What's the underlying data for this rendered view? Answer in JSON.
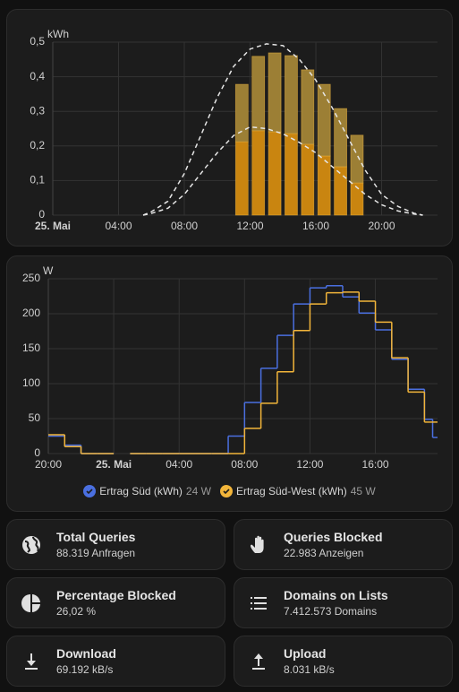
{
  "chart_data": [
    {
      "type": "bar",
      "y_unit": "kWh",
      "xlim": [
        0,
        23.4
      ],
      "ylim": [
        0,
        0.5
      ],
      "xticks": [
        {
          "value": 0,
          "label": "25. Mai"
        },
        {
          "value": 4,
          "label": "04:00"
        },
        {
          "value": 8,
          "label": "08:00"
        },
        {
          "value": 12,
          "label": "12:00"
        },
        {
          "value": 16,
          "label": "16:00"
        },
        {
          "value": 20,
          "label": "20:00"
        }
      ],
      "yticks": [
        0,
        {
          "value": 0.1,
          "label": "0,1"
        },
        {
          "value": 0.2,
          "label": "0,2"
        },
        {
          "value": 0.3,
          "label": "0,3"
        },
        {
          "value": 0.4,
          "label": "0,4"
        },
        {
          "value": 0.5,
          "label": "0,5"
        }
      ],
      "grid": true,
      "series": [
        {
          "type": "bar",
          "color": "#c98510",
          "x": [
            11.5,
            12.5,
            13.5,
            14.5,
            15.5,
            16.5,
            17.5,
            18.5
          ],
          "values": [
            0.212,
            0.244,
            0.241,
            0.236,
            0.205,
            0.171,
            0.14,
            0.093
          ]
        },
        {
          "type": "bar",
          "stacked": true,
          "color": "#9c7f35",
          "x": [
            11.5,
            12.5,
            13.5,
            14.5,
            15.5,
            16.5,
            17.5,
            18.5
          ],
          "values": [
            0.166,
            0.215,
            0.228,
            0.225,
            0.215,
            0.207,
            0.168,
            0.138
          ]
        },
        {
          "type": "line",
          "dashed": true,
          "color": "#e6e6e6",
          "x": [
            5.5,
            6,
            7,
            8,
            9,
            10,
            11,
            12,
            13,
            14,
            15,
            16,
            17,
            18,
            19,
            20,
            21,
            22,
            22.5
          ],
          "values": [
            0,
            0.01,
            0.04,
            0.12,
            0.23,
            0.34,
            0.43,
            0.48,
            0.495,
            0.49,
            0.45,
            0.39,
            0.31,
            0.22,
            0.13,
            0.06,
            0.025,
            0.005,
            0
          ]
        },
        {
          "type": "line",
          "dashed": true,
          "color": "#e6e6e6",
          "x": [
            5.5,
            6,
            7,
            8,
            9,
            10,
            11,
            12,
            13,
            14,
            15,
            16,
            17,
            18,
            19,
            20,
            21,
            22,
            22.5
          ],
          "values": [
            0,
            0.005,
            0.02,
            0.06,
            0.12,
            0.18,
            0.23,
            0.255,
            0.25,
            0.235,
            0.21,
            0.18,
            0.14,
            0.1,
            0.06,
            0.03,
            0.012,
            0.003,
            0
          ]
        }
      ]
    },
    {
      "type": "line",
      "step": true,
      "y_unit": "W",
      "xlim": [
        -4,
        19.8
      ],
      "ylim": [
        0,
        250
      ],
      "xticks": [
        {
          "value": -4,
          "label": "20:00"
        },
        {
          "value": 0,
          "label": "25. Mai"
        },
        {
          "value": 4,
          "label": "04:00"
        },
        {
          "value": 8,
          "label": "08:00"
        },
        {
          "value": 12,
          "label": "12:00"
        },
        {
          "value": 16,
          "label": "16:00"
        }
      ],
      "yticks": [
        0,
        50,
        100,
        150,
        200,
        250
      ],
      "grid": true,
      "x": [
        -4,
        -3,
        -2,
        -1,
        0,
        1,
        2,
        3,
        4,
        5,
        6,
        7,
        8,
        9,
        10,
        11,
        12,
        13,
        14,
        15,
        16,
        17,
        18,
        19,
        19.5
      ],
      "series": [
        {
          "name": "Ertrag Süd (kWh)",
          "state": "24 W",
          "color": "#4a6fe0",
          "values": [
            25,
            12,
            0,
            0,
            null,
            0,
            0,
            0,
            0,
            0,
            0,
            25,
            73,
            122,
            169,
            214,
            237,
            240,
            224,
            201,
            177,
            135,
            92,
            49,
            23
          ]
        },
        {
          "name": "Ertrag Süd-West (kWh)",
          "state": "45 W",
          "color": "#f2b53a",
          "values": [
            27,
            10,
            0,
            0,
            null,
            0,
            0,
            0,
            0,
            0,
            0,
            0,
            36,
            72,
            117,
            176,
            214,
            230,
            231,
            218,
            188,
            137,
            88,
            45,
            45
          ]
        }
      ]
    }
  ],
  "tiles": [
    {
      "title": "Total Queries",
      "subtitle": "88.319 Anfragen"
    },
    {
      "title": "Queries Blocked",
      "subtitle": "22.983 Anzeigen"
    },
    {
      "title": "Percentage Blocked",
      "subtitle": "26,02 %"
    },
    {
      "title": "Domains on Lists",
      "subtitle": "7.412.573 Domains"
    },
    {
      "title": "Download",
      "subtitle": "69.192 kB/s"
    },
    {
      "title": "Upload",
      "subtitle": "8.031 kB/s"
    }
  ]
}
